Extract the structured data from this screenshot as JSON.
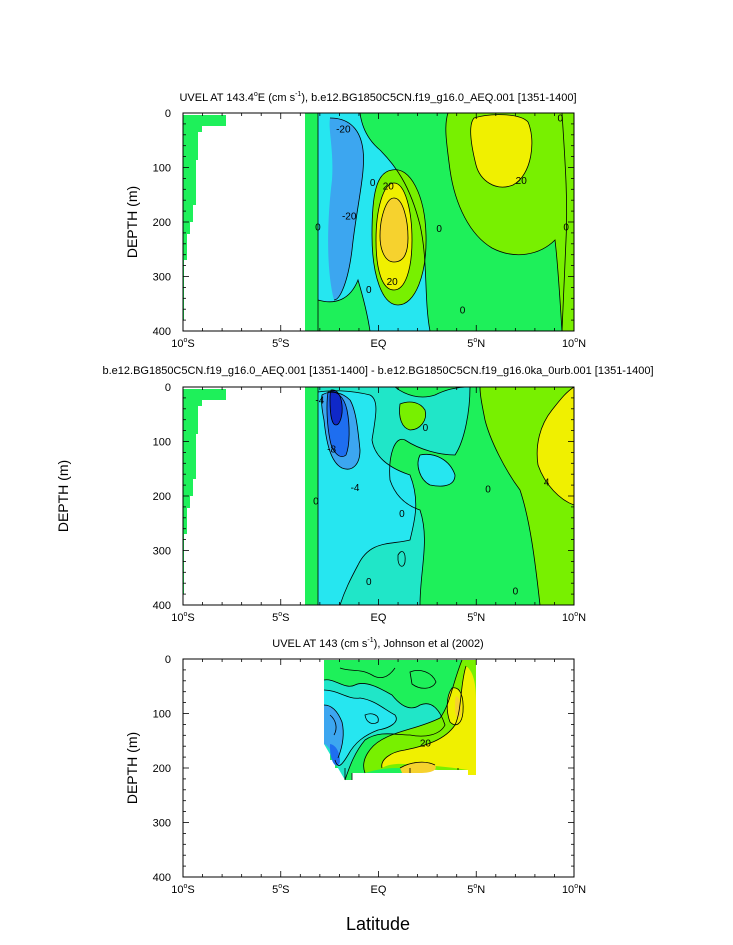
{
  "figure": {
    "xlabel": "Latitude",
    "colors": {
      "land": "#ffffff",
      "zero_fill": "#1ef05a",
      "level_neg_1": "#20e6c8",
      "level_neg_2": "#26e6f0",
      "level_neg_3": "#3ca6f0",
      "level_neg_4": "#1e6ef0",
      "level_neg_5": "#0f28c8",
      "level_pos_1": "#78f000",
      "level_pos_2": "#f0f000",
      "level_pos_3": "#f6d22e",
      "contour_line": "#000000"
    }
  },
  "chart_data": [
    {
      "type": "contour",
      "title_prefix": "UVEL AT 143.4",
      "title_degree": "o",
      "title_mid": "E (cm s",
      "title_exp": "-1",
      "title_suffix": "), b.e12.BG1850C5CN.f19_g16.0_AEQ.001 [1351-1400]",
      "ylabel": "DEPTH (m)",
      "xlim": [
        -10,
        10
      ],
      "ylim": [
        400,
        0
      ],
      "xticks": [
        {
          "value": -10,
          "main": "10",
          "deg": "o",
          "hemi": "S"
        },
        {
          "value": -5,
          "main": "5",
          "deg": "o",
          "hemi": "S"
        },
        {
          "value": 0,
          "main": "EQ",
          "deg": "",
          "hemi": ""
        },
        {
          "value": 5,
          "main": "5",
          "deg": "o",
          "hemi": "N"
        },
        {
          "value": 10,
          "main": "10",
          "deg": "o",
          "hemi": "N"
        }
      ],
      "yticks": [
        0,
        100,
        200,
        300,
        400
      ],
      "contour_labels": [
        {
          "text": "-20",
          "lat": -1.8,
          "depth": 30
        },
        {
          "text": "20",
          "lat": 0.5,
          "depth": 135
        },
        {
          "text": "-20",
          "lat": -1.5,
          "depth": 190
        },
        {
          "text": "20",
          "lat": 7.3,
          "depth": 125
        },
        {
          "text": "0",
          "lat": 9.3,
          "depth": 10
        },
        {
          "text": "0",
          "lat": -3.1,
          "depth": 210
        },
        {
          "text": "0",
          "lat": -0.3,
          "depth": 128
        },
        {
          "text": "0",
          "lat": 3.1,
          "depth": 213
        },
        {
          "text": "0",
          "lat": 9.6,
          "depth": 210
        },
        {
          "text": "0",
          "lat": -0.5,
          "depth": 325
        },
        {
          "text": "0",
          "lat": 4.3,
          "depth": 362
        },
        {
          "text": "20",
          "lat": 0.7,
          "depth": 310
        }
      ]
    },
    {
      "type": "contour",
      "title": "b.e12.BG1850C5CN.f19_g16.0_AEQ.001 [1351-1400] - b.e12.BG1850C5CN.f19_g16.0ka_0urb.001 [1351-1400]",
      "ylabel": "DEPTH (m)",
      "xlim": [
        -10,
        10
      ],
      "ylim": [
        400,
        0
      ],
      "xticks": [
        {
          "value": -10,
          "main": "10",
          "deg": "o",
          "hemi": "S"
        },
        {
          "value": -5,
          "main": "5",
          "deg": "o",
          "hemi": "S"
        },
        {
          "value": 0,
          "main": "EQ",
          "deg": "",
          "hemi": ""
        },
        {
          "value": 5,
          "main": "5",
          "deg": "o",
          "hemi": "N"
        },
        {
          "value": 10,
          "main": "10",
          "deg": "o",
          "hemi": "N"
        }
      ],
      "yticks": [
        0,
        100,
        200,
        300,
        400
      ],
      "contour_labels": [
        {
          "text": "-4",
          "lat": -3.0,
          "depth": 25
        },
        {
          "text": "-8",
          "lat": -2.4,
          "depth": 115
        },
        {
          "text": "-4",
          "lat": -1.2,
          "depth": 185
        },
        {
          "text": "4",
          "lat": 8.6,
          "depth": 175
        },
        {
          "text": "0",
          "lat": 2.4,
          "depth": 75
        },
        {
          "text": "0",
          "lat": 5.6,
          "depth": 188
        },
        {
          "text": "0",
          "lat": -3.2,
          "depth": 210
        },
        {
          "text": "0",
          "lat": 1.2,
          "depth": 233
        },
        {
          "text": "0",
          "lat": -0.5,
          "depth": 358
        },
        {
          "text": "0",
          "lat": 7.0,
          "depth": 375
        }
      ]
    },
    {
      "type": "contour",
      "title_prefix": "UVEL AT 143 (cm s",
      "title_exp": "-1",
      "title_suffix": "), Johnson et al (2002)",
      "ylabel": "DEPTH (m)",
      "xlim": [
        -10,
        10
      ],
      "ylim": [
        400,
        0
      ],
      "xticks": [
        {
          "value": -10,
          "main": "10",
          "deg": "o",
          "hemi": "S"
        },
        {
          "value": -5,
          "main": "5",
          "deg": "o",
          "hemi": "S"
        },
        {
          "value": 0,
          "main": "EQ",
          "deg": "",
          "hemi": ""
        },
        {
          "value": 5,
          "main": "5",
          "deg": "o",
          "hemi": "N"
        },
        {
          "value": 10,
          "main": "10",
          "deg": "o",
          "hemi": "N"
        }
      ],
      "yticks": [
        0,
        100,
        200,
        300,
        400
      ],
      "contour_labels": [
        {
          "text": "20",
          "lat": 2.4,
          "depth": 155
        }
      ]
    }
  ]
}
